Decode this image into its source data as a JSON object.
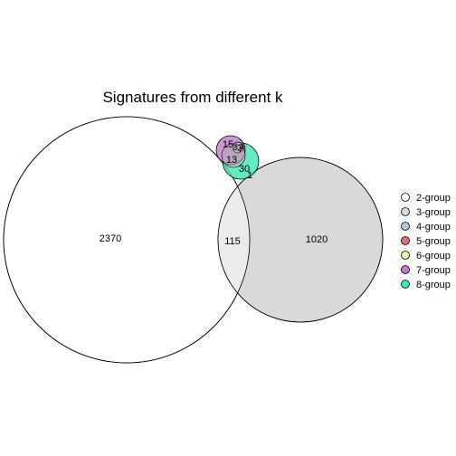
{
  "title": "Signatures from different k",
  "regions": [
    {
      "label": "2370"
    },
    {
      "label": "115"
    },
    {
      "label": "1020"
    },
    {
      "label": "15"
    },
    {
      "label": "13"
    },
    {
      "label": "30"
    },
    {
      "label": "1"
    },
    {
      "label": "3"
    },
    {
      "label": "4"
    },
    {
      "label": "2"
    }
  ],
  "legend": [
    {
      "label": "2-group",
      "color": "#ffffff"
    },
    {
      "label": "3-group",
      "color": "#d9d9d9"
    },
    {
      "label": "4-group",
      "color": "#a6cbe6"
    },
    {
      "label": "5-group",
      "color": "#e66f6f"
    },
    {
      "label": "6-group",
      "color": "#f2ecb3"
    },
    {
      "label": "7-group",
      "color": "#c27ac9"
    },
    {
      "label": "8-group",
      "color": "#3ee6b4"
    }
  ]
}
